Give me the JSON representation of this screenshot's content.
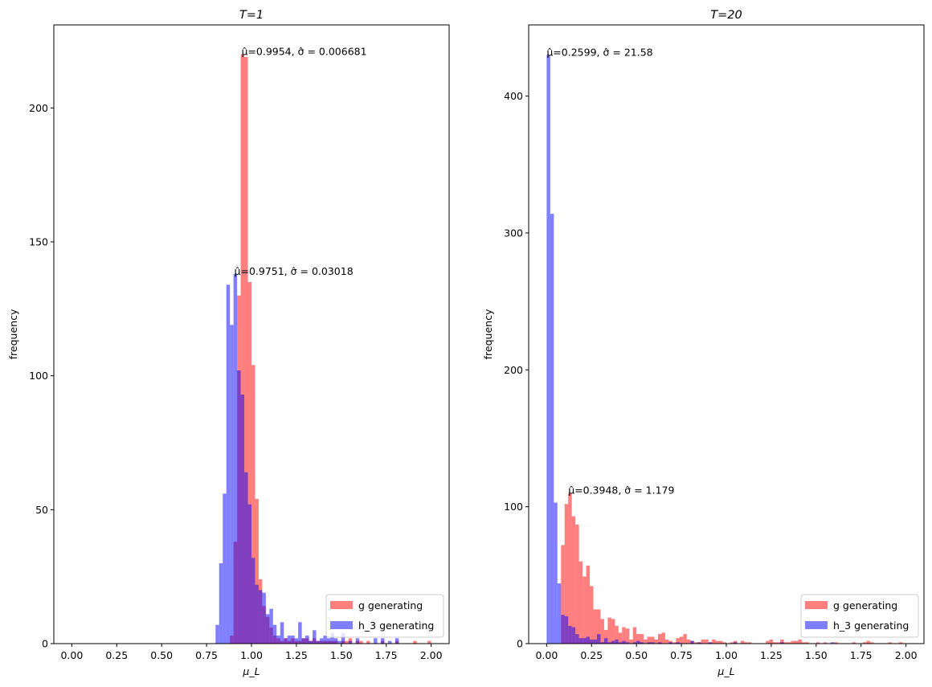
{
  "chart_data": [
    {
      "type": "histogram",
      "title": "T=1",
      "xlabel": "μ_L",
      "ylabel": "frequency",
      "xlim": [
        -0.1,
        2.1
      ],
      "ylim": [
        0,
        231
      ],
      "xticks": [
        "0.00",
        "0.25",
        "0.50",
        "0.75",
        "1.00",
        "1.25",
        "1.50",
        "1.75",
        "2.00"
      ],
      "yticks": [
        "0",
        "50",
        "100",
        "150",
        "200"
      ],
      "grid": false,
      "legend_position": "lower right",
      "bin_width": 0.02,
      "series": [
        {
          "name": "g generating",
          "color": "#ff0000",
          "alpha": 0.5,
          "bin_start": 0.8,
          "counts": [
            0,
            0,
            0,
            0,
            3,
            38,
            130,
            220,
            219,
            135,
            104,
            54,
            24,
            14,
            10,
            6,
            3,
            2,
            1,
            2,
            1,
            2,
            1,
            1,
            2,
            2,
            1,
            2,
            1,
            1,
            1,
            1,
            1,
            1,
            0,
            1,
            1,
            2,
            0,
            1,
            1,
            0,
            1,
            0,
            0,
            0,
            1,
            0,
            0,
            0,
            1,
            0,
            0,
            0,
            0,
            1,
            0,
            0,
            0,
            1
          ]
        },
        {
          "name": "h_3 generating",
          "color": "#0000ff",
          "alpha": 0.5,
          "bin_start": 0.8,
          "counts": [
            7,
            30,
            56,
            134,
            119,
            138,
            102,
            93,
            64,
            52,
            32,
            22,
            20,
            19,
            11,
            13,
            7,
            3,
            8,
            2,
            3,
            3,
            2,
            8,
            2,
            3,
            1,
            5,
            1,
            2,
            3,
            2,
            4,
            2,
            1,
            4,
            0,
            1,
            0,
            2,
            0,
            0,
            0,
            0,
            2,
            0,
            2,
            0,
            1,
            0,
            2,
            0,
            0,
            0,
            0,
            0,
            0,
            0,
            0,
            0
          ]
        }
      ],
      "annotations": [
        {
          "text": "μ̂=0.9954, σ̂ = 0.006681",
          "x": 0.944,
          "y": 220
        },
        {
          "text": "μ̂=0.9751, σ̂ = 0.03018",
          "x": 0.904,
          "y": 138
        }
      ]
    },
    {
      "type": "histogram",
      "title": "T=20",
      "xlabel": "μ_L",
      "ylabel": "frequency",
      "xlim": [
        -0.1,
        2.1
      ],
      "ylim": [
        0,
        452
      ],
      "xticks": [
        "0.00",
        "0.25",
        "0.50",
        "0.75",
        "1.00",
        "1.25",
        "1.50",
        "1.75",
        "2.00"
      ],
      "yticks": [
        "0",
        "100",
        "200",
        "300",
        "400"
      ],
      "grid": false,
      "legend_position": "lower right",
      "bin_width": 0.02,
      "series": [
        {
          "name": "g generating",
          "color": "#ff0000",
          "alpha": 0.5,
          "bin_start": 0.0,
          "counts": [
            0,
            0,
            0,
            0,
            72,
            102,
            110,
            93,
            87,
            60,
            49,
            57,
            42,
            25,
            25,
            18,
            10,
            19,
            18,
            13,
            8,
            12,
            11,
            3,
            12,
            7,
            7,
            3,
            5,
            5,
            3,
            7,
            8,
            3,
            2,
            1,
            4,
            5,
            7,
            3,
            2,
            1,
            1,
            3,
            3,
            1,
            3,
            2,
            2,
            1,
            0,
            1,
            2,
            0,
            2,
            1,
            1,
            0,
            0,
            0,
            0,
            2,
            3,
            1,
            1,
            3,
            1,
            1,
            2,
            2,
            3,
            1,
            1,
            0,
            0,
            1,
            0,
            1,
            0,
            0,
            1,
            0,
            0,
            0,
            0,
            1,
            0,
            0,
            1,
            2,
            1,
            0,
            0,
            0,
            0,
            1,
            0,
            0,
            1,
            0
          ]
        },
        {
          "name": "h_3 generating",
          "color": "#0000ff",
          "alpha": 0.5,
          "bin_start": 0.0,
          "counts": [
            430,
            314,
            103,
            44,
            21,
            20,
            13,
            12,
            7,
            4,
            4,
            5,
            3,
            3,
            7,
            1,
            4,
            1,
            2,
            3,
            1,
            2,
            1,
            0,
            1,
            2,
            1,
            0,
            1,
            1,
            0,
            1,
            0,
            0,
            1,
            0,
            1,
            0,
            0,
            0,
            2,
            0,
            1,
            0,
            0,
            1,
            0,
            0,
            0,
            0,
            0,
            0,
            1,
            0,
            0,
            0,
            0,
            0,
            0,
            0,
            0,
            0,
            0,
            0,
            0,
            1,
            0,
            0,
            0,
            0,
            0,
            0,
            0,
            0,
            0,
            0,
            0,
            0,
            0,
            1
          ]
        }
      ],
      "annotations": [
        {
          "text": "μ̂=0.2599, σ̂ = 21.58",
          "x": 0.0,
          "y": 430
        },
        {
          "text": "μ̂=0.3948, σ̂ = 1.179",
          "x": 0.12,
          "y": 110
        }
      ]
    }
  ]
}
